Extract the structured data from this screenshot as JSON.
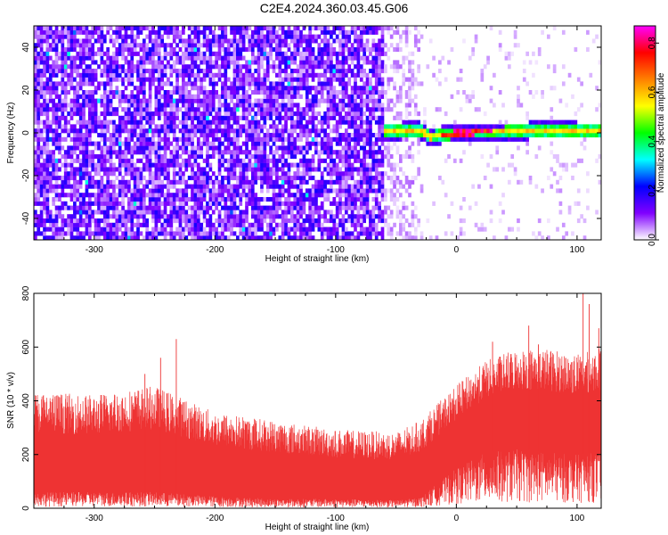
{
  "figure": {
    "title": "C2E4.2024.360.03.45.G06"
  },
  "chart_data": [
    {
      "type": "heatmap",
      "title": "C2E4.2024.360.03.45.G06",
      "xlabel": "Height of straight line (km)",
      "ylabel": "Frequency (Hz)",
      "xlim": [
        -350,
        120
      ],
      "ylim": [
        -50,
        50
      ],
      "xticks": [
        -300,
        -200,
        -100,
        0,
        100
      ],
      "yticks": [
        -40,
        -20,
        0,
        20,
        40
      ],
      "grid": false,
      "colorbar": {
        "label": "Normalized spectral amplitude",
        "range": [
          0.0,
          0.87
        ],
        "ticks": [
          0.0,
          0.2,
          0.4,
          0.6,
          0.8
        ],
        "colors": [
          "#ffffff",
          "#8000ff",
          "#0000ff",
          "#00ffff",
          "#00ff00",
          "#ffff00",
          "#ff8000",
          "#ff0000",
          "#ff00ff"
        ]
      },
      "features": {
        "noise_region_x": [
          -350,
          -62
        ],
        "noise_level": 0.15,
        "transition_x": [
          -62,
          -30
        ],
        "signal_line_start_x": -62,
        "signal_line": [
          {
            "x": -62,
            "freq": 0.5
          },
          {
            "x": -30,
            "freq": 1.5
          },
          {
            "x": -22,
            "freq": -2.0
          },
          {
            "x": -12,
            "freq": -1.0
          },
          {
            "x": 0,
            "freq": 0.0
          },
          {
            "x": 40,
            "freq": 0.5
          },
          {
            "x": 80,
            "freq": 1.5
          },
          {
            "x": 100,
            "freq": 1.0
          },
          {
            "x": 120,
            "freq": 1.0
          }
        ],
        "signal_peak_amplitude": 0.85
      }
    },
    {
      "type": "line",
      "title": "",
      "xlabel": "Height of straight line (km)",
      "ylabel": "SNR (10 * v/v)",
      "xlim": [
        -350,
        120
      ],
      "ylim": [
        0,
        800
      ],
      "xticks": [
        -300,
        -200,
        -100,
        0,
        100
      ],
      "yticks": [
        0,
        200,
        400,
        600,
        800
      ],
      "grid": false,
      "series": [
        {
          "color": "#ee3333",
          "envelope_x": [
            -350,
            -300,
            -250,
            -200,
            -150,
            -100,
            -50,
            -30,
            0,
            25,
            50,
            75,
            100,
            120
          ],
          "envelope_high": [
            400,
            390,
            420,
            330,
            300,
            270,
            260,
            300,
            430,
            520,
            560,
            560,
            540,
            560
          ],
          "envelope_low": [
            60,
            60,
            60,
            45,
            35,
            35,
            30,
            40,
            150,
            210,
            220,
            210,
            200,
            210
          ],
          "spikes": [
            {
              "x": -232,
              "y": 630
            },
            {
              "x": -245,
              "y": 560
            },
            {
              "x": 60,
              "y": 680
            },
            {
              "x": 68,
              "y": 610
            },
            {
              "x": 105,
              "y": 800
            },
            {
              "x": 110,
              "y": 760
            },
            {
              "x": 118,
              "y": 670
            },
            {
              "x": -258,
              "y": 500
            },
            {
              "x": 30,
              "y": 620
            }
          ]
        }
      ]
    }
  ]
}
